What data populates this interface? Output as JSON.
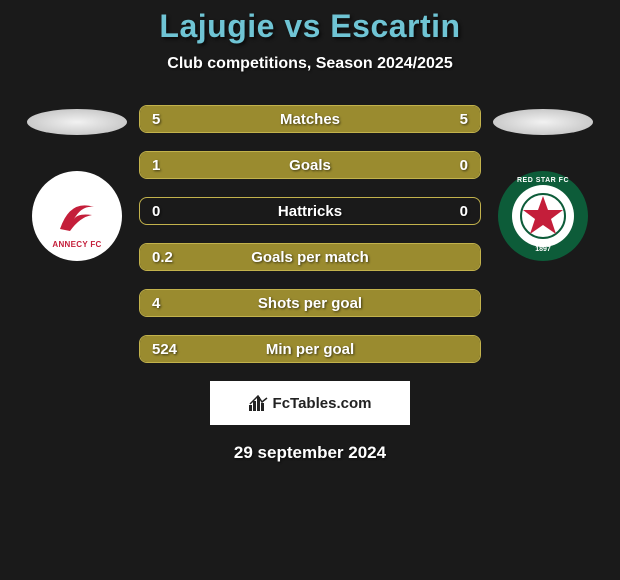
{
  "header": {
    "title": "Lajugie vs Escartin",
    "subtitle": "Club competitions, Season 2024/2025",
    "title_color": "#6fc4d4",
    "subtitle_color": "#ffffff"
  },
  "background_color": "#1a1a1a",
  "bar_fill_color": "#9a8b2f",
  "bar_border_color": "#c2b24c",
  "clubs": {
    "left": {
      "name": "ANNECY FC",
      "primary_color": "#c41e3a",
      "background": "#ffffff"
    },
    "right": {
      "name": "RED STAR FC",
      "year": "1897",
      "primary_color": "#0d5c39",
      "star_color": "#c41e3a",
      "inner_background": "#ffffff"
    }
  },
  "stats": [
    {
      "label": "Matches",
      "left_val": "5",
      "right_val": "5",
      "left_pct": 50,
      "right_pct": 50
    },
    {
      "label": "Goals",
      "left_val": "1",
      "right_val": "0",
      "left_pct": 80,
      "right_pct": 20
    },
    {
      "label": "Hattricks",
      "left_val": "0",
      "right_val": "0",
      "left_pct": 0,
      "right_pct": 0
    },
    {
      "label": "Goals per match",
      "left_val": "0.2",
      "right_val": "",
      "left_pct": 100,
      "right_pct": 0
    },
    {
      "label": "Shots per goal",
      "left_val": "4",
      "right_val": "",
      "left_pct": 100,
      "right_pct": 0
    },
    {
      "label": "Min per goal",
      "left_val": "524",
      "right_val": "",
      "left_pct": 100,
      "right_pct": 0
    }
  ],
  "footer": {
    "brand": "FcTables.com",
    "brand_color": "#222222",
    "box_background": "#ffffff"
  },
  "date": "29 september 2024"
}
